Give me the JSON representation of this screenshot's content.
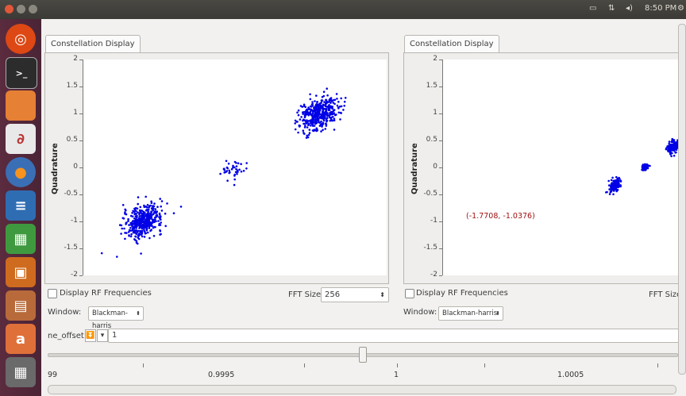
{
  "topbar": {
    "clock": "8:50 PM",
    "icons": [
      "battery-icon",
      "network-icon",
      "volume-icon",
      "settings-icon"
    ]
  },
  "launcher": {
    "items": [
      "ubuntu-dash-icon",
      "terminal-icon",
      "files-icon",
      "text-editor-icon",
      "firefox-icon",
      "writer-icon",
      "calc-icon",
      "impress-icon",
      "software-center-icon",
      "amazon-icon",
      "workspace-switcher-icon",
      "trash-icon"
    ]
  },
  "left_panel": {
    "tab_label": "Constellation Display",
    "y_label": "Quadrature",
    "display_rf_label": "Display RF Frequencies",
    "fft_label": "FFT Size:",
    "fft_value": "256",
    "window_label": "Window:",
    "window_value": "Blackman-harris"
  },
  "right_panel": {
    "tab_label": "Constellation Display",
    "y_label": "Quadrature",
    "display_rf_label": "Display RF Frequencies",
    "fft_label": "FFT Size:",
    "window_label": "Window:",
    "window_value": "Blackman-harris",
    "cursor_readout": "(-1.7708, -1.0376)"
  },
  "offset": {
    "label": "ne_offset:",
    "value": "1",
    "scale_labels": [
      "99",
      "0.9995",
      "1",
      "1.0005"
    ],
    "slider_fraction": 0.5
  },
  "chart_data": [
    {
      "type": "scatter",
      "ylabel": "Quadrature",
      "yticks": [
        "2",
        "1.5",
        "1",
        "0.5",
        "0",
        "-0.5",
        "-1",
        "-1.5",
        "-2"
      ],
      "ylim": [
        -2,
        2
      ],
      "xlim": [
        -2.5,
        2.5
      ],
      "color": "#0000e6",
      "clusters": [
        {
          "cx": -1.5,
          "cy": -1.0,
          "spread": 0.16,
          "n": 420
        },
        {
          "cx": 0.0,
          "cy": -0.04,
          "spread": 0.1,
          "n": 40
        },
        {
          "cx": 1.4,
          "cy": 1.0,
          "spread": 0.16,
          "n": 420
        }
      ]
    },
    {
      "type": "scatter",
      "ylabel": "Quadrature",
      "yticks": [
        "2",
        "1.5",
        "1",
        "0.5",
        "0",
        "-0.5",
        "-1",
        "-1.5",
        "-2"
      ],
      "ylim": [
        -2,
        2
      ],
      "xlim": [
        -2.5,
        2.5
      ],
      "color": "#0000e6",
      "clusters": [
        {
          "cx": 1.08,
          "cy": -0.34,
          "spread": 0.06,
          "n": 150
        },
        {
          "cx": 1.72,
          "cy": 0.0,
          "spread": 0.035,
          "n": 60
        },
        {
          "cx": 2.3,
          "cy": 0.38,
          "spread": 0.06,
          "n": 150
        }
      ]
    }
  ]
}
